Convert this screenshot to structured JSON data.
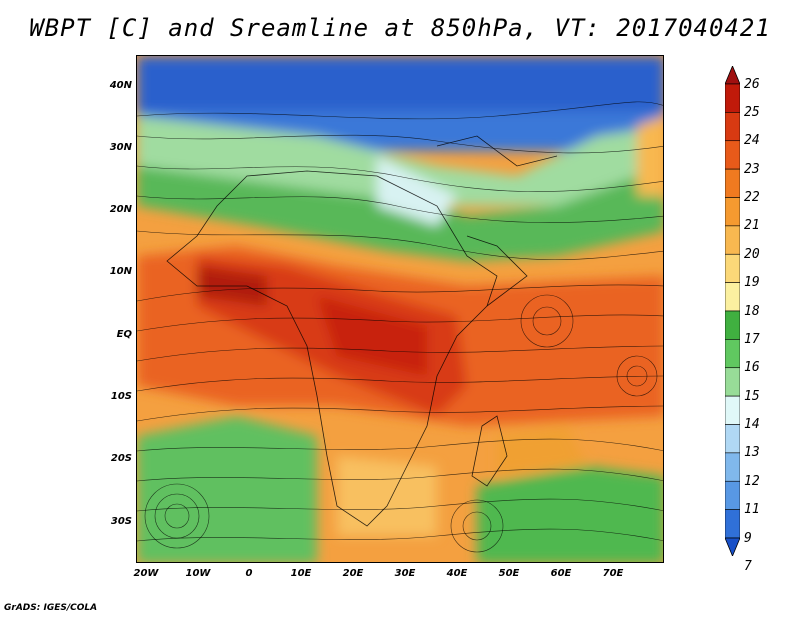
{
  "title": "WBPT [C] and Sreamline at 850hPa, VT: 2017040421",
  "credit": "GrADS: IGES/COLA",
  "lat_labels": [
    "40N",
    "30N",
    "20N",
    "10N",
    "EQ",
    "10S",
    "20S",
    "30S"
  ],
  "lon_labels": [
    "20W",
    "10W",
    "0",
    "10E",
    "20E",
    "30E",
    "40E",
    "50E",
    "60E",
    "70E"
  ],
  "colorbar": {
    "labels": [
      "26",
      "25",
      "24",
      "23",
      "22",
      "21",
      "20",
      "19",
      "18",
      "17",
      "16",
      "15",
      "14",
      "13",
      "12",
      "11",
      "9",
      "7"
    ],
    "colors": [
      "#a01010",
      "#c01a0a",
      "#d83a12",
      "#e85a1a",
      "#f07a20",
      "#f59a30",
      "#f8b850",
      "#fbd878",
      "#fbf0a0",
      "#40b040",
      "#60c860",
      "#98dc98",
      "#e0f8f8",
      "#b0d8f4",
      "#80b8ec",
      "#5898e4",
      "#3070d8",
      "#1850c8"
    ]
  }
}
